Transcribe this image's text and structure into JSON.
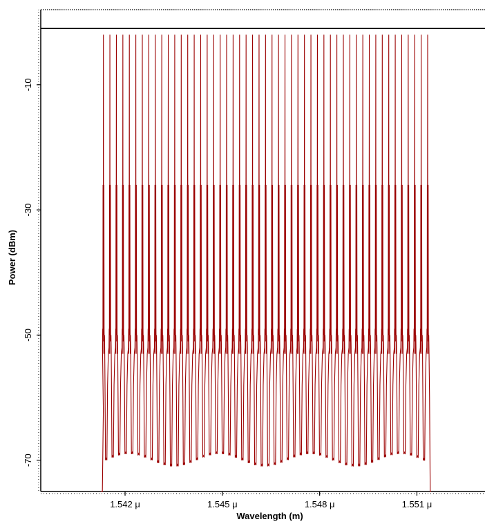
{
  "chart_data": {
    "type": "line",
    "title": "",
    "xlabel": "Wavelength (m)",
    "ylabel": "Power (dBm)",
    "xlim": [
      1.5394,
      1.5531
    ],
    "ylim": [
      -75,
      2
    ],
    "x_unit_suffix": " μ",
    "x_ticks": [
      {
        "value": 1.542,
        "label": "1.542 μ"
      },
      {
        "value": 1.545,
        "label": "1.545 μ"
      },
      {
        "value": 1.548,
        "label": "1.548 μ"
      },
      {
        "value": 1.551,
        "label": "1.551 μ"
      }
    ],
    "y_ticks": [
      {
        "value": -10,
        "label": "-10"
      },
      {
        "value": -30,
        "label": "-30"
      },
      {
        "value": -50,
        "label": "-50"
      },
      {
        "value": -70,
        "label": "-70"
      }
    ],
    "reference_line_dbm": -1,
    "series": [
      {
        "color": "#9b0000",
        "description_values": {
          "spectrum_start": 1.5413,
          "spectrum_end": 1.5516,
          "channel_spacing": 0.0002,
          "channel_count": 51,
          "main_peak_dbm": -2,
          "sideband_peak_dbm": -26,
          "noise_floor_dbm": -50,
          "trough_dbm": -70,
          "edge_dbm": -75
        }
      }
    ],
    "grid": false,
    "legend": "none"
  }
}
